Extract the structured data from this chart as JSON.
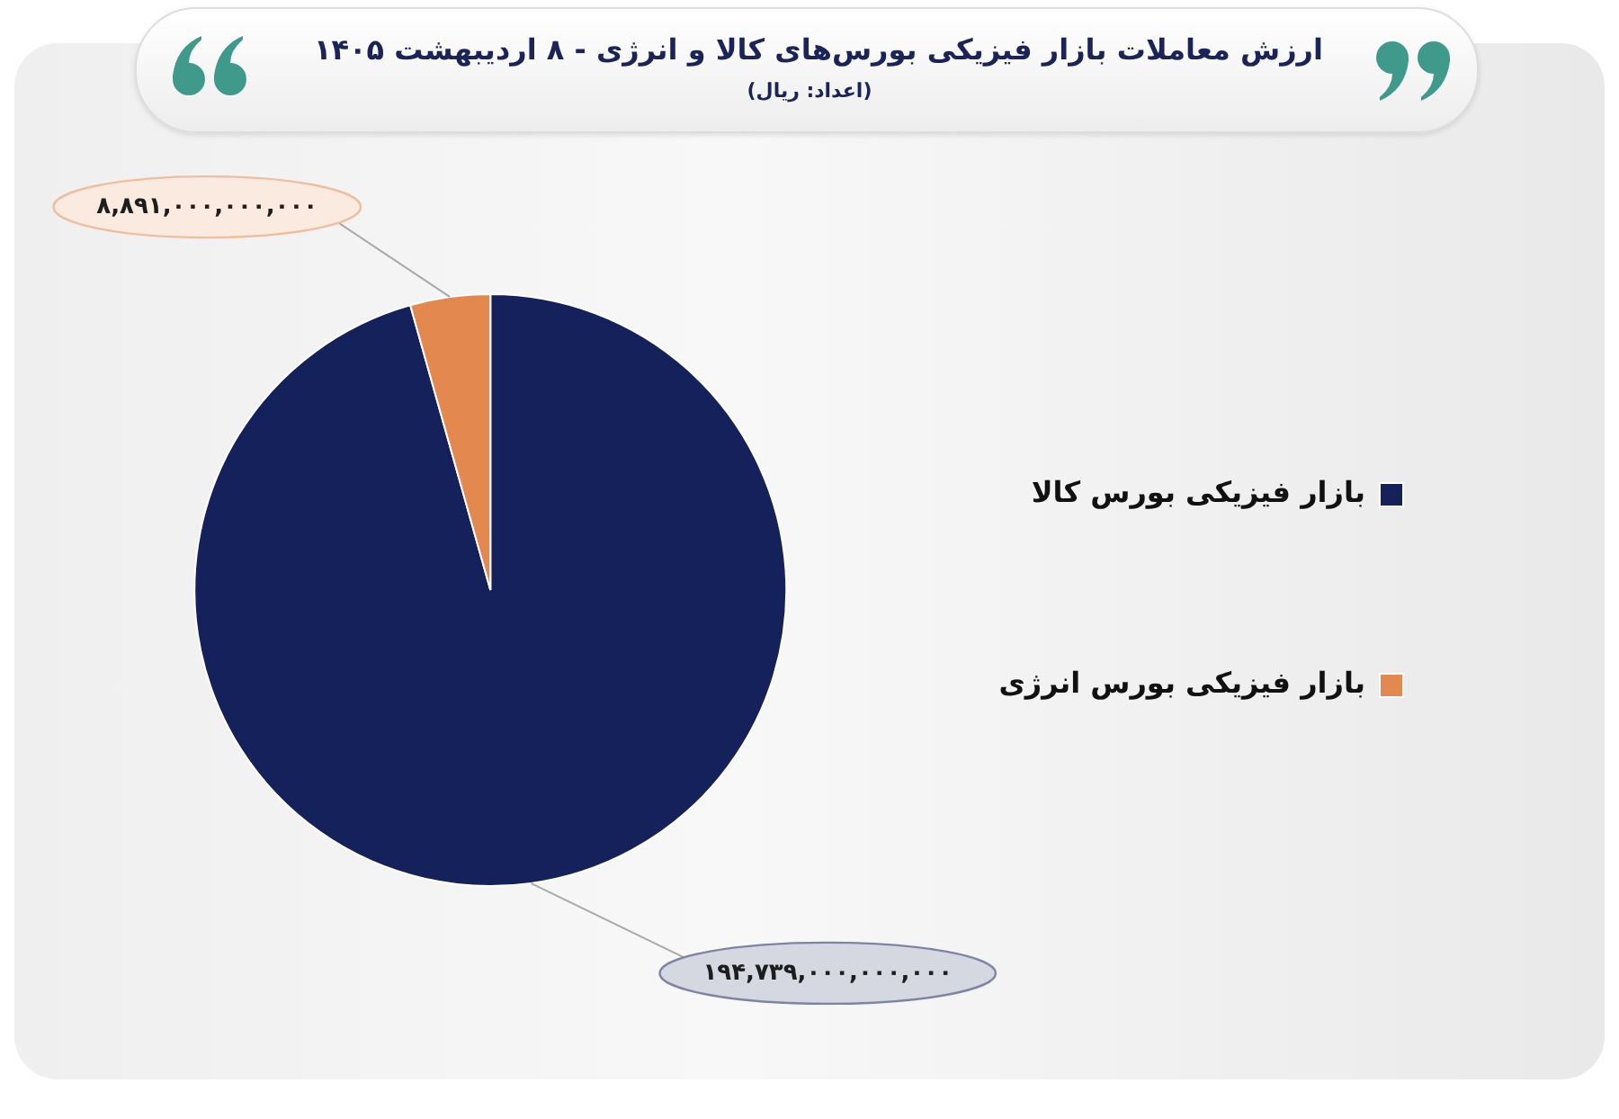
{
  "chart_data": {
    "type": "pie",
    "title": "ارزش معاملات بازار فیزیکی بورس‌های کالا و انرژی - ۸ اردیبهشت ۱۴۰۵",
    "subtitle": "(اعداد: ریال)",
    "categories": [
      "بازار فیزیکی بورس کالا",
      "بازار فیزیکی بورس انرژی"
    ],
    "values": [
      194739000000000,
      8891000000000
    ],
    "colors": [
      "#14215a",
      "#e3894f"
    ],
    "value_labels": [
      "۱۹۴,۷۳۹,۰۰۰,۰۰۰,۰۰۰",
      "۸,۸۹۱,۰۰۰,۰۰۰,۰۰۰"
    ],
    "legend": "right"
  }
}
